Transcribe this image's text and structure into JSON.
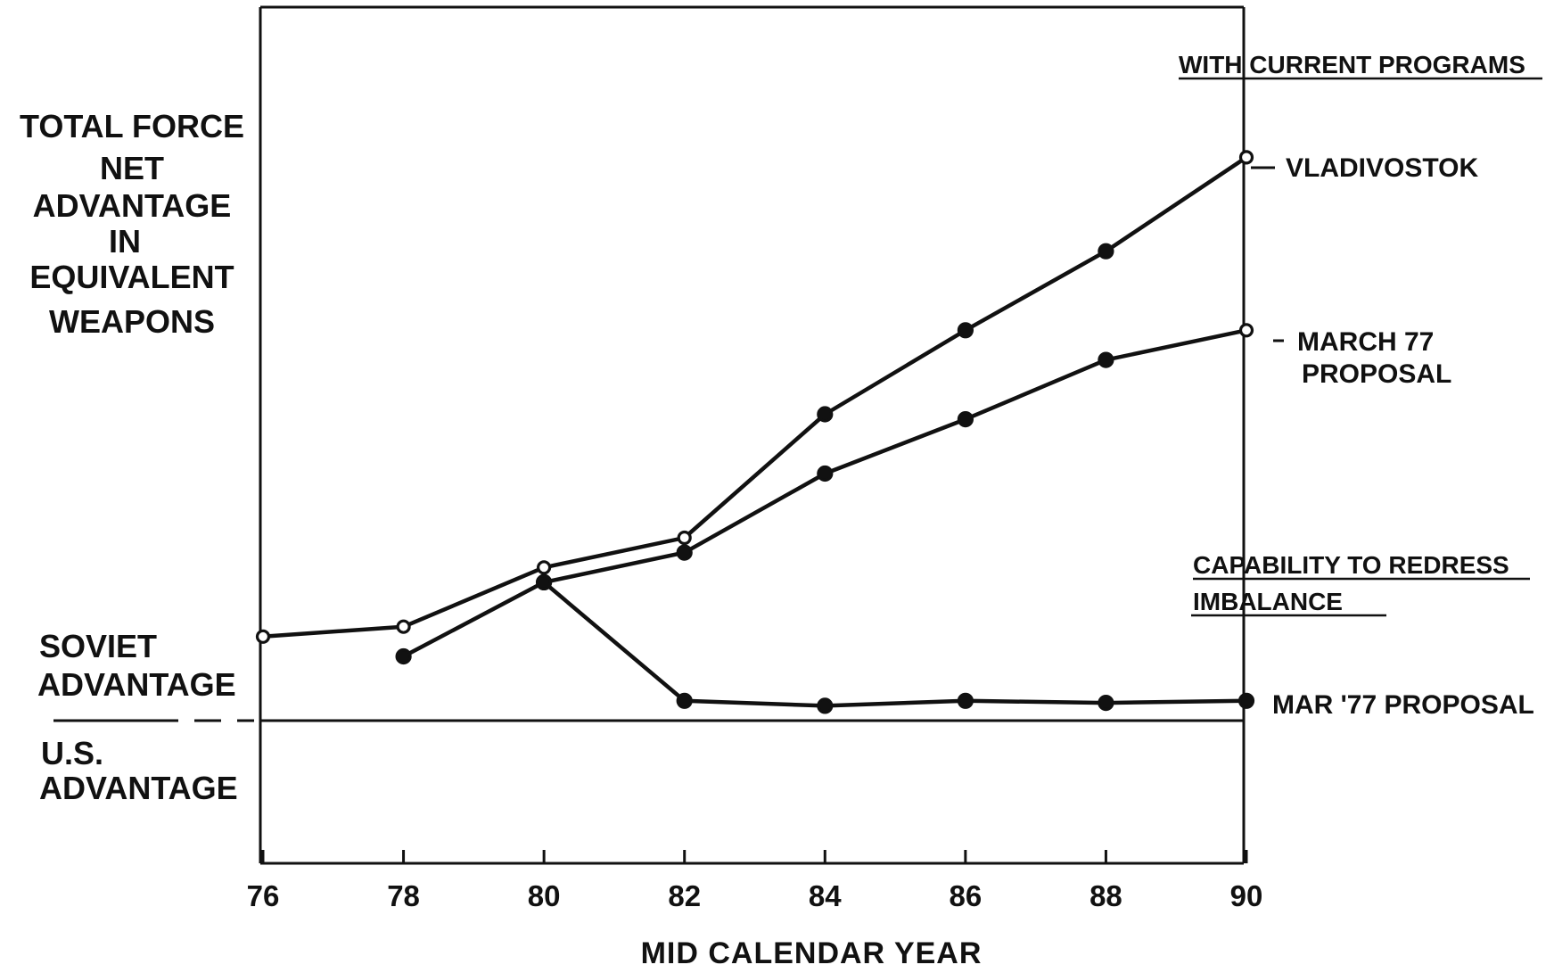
{
  "chart_data": {
    "type": "line",
    "title": "",
    "xlabel": "MID CALENDAR YEAR",
    "ylabel_lines": [
      "TOTAL FORCE",
      "NET",
      "ADVANTAGE",
      "IN",
      "EQUIVALENT",
      "WEAPONS"
    ],
    "ylabel": "TOTAL FORCE NET ADVANTAGE IN EQUIVALENT WEAPONS",
    "x_ticks": [
      "76",
      "78",
      "80",
      "82",
      "84",
      "86",
      "88",
      "90"
    ],
    "xlim": [
      76,
      90
    ],
    "ylim": [
      -50,
      150
    ],
    "zero_line_labels": {
      "above": [
        "SOVIET",
        "ADVANTAGE"
      ],
      "below": [
        "U.S.",
        "ADVANTAGE"
      ]
    },
    "group_headers": {
      "current_programs": "WITH CURRENT PROGRAMS",
      "redress": [
        "CAPABILITY TO REDRESS",
        "IMBALANCE"
      ]
    },
    "series": [
      {
        "name": "VLADIVOSTOK",
        "label_lines": [
          "VLADIVOSTOK"
        ],
        "group": "WITH CURRENT PROGRAMS",
        "x": [
          76,
          78,
          80,
          82,
          84,
          86,
          88,
          90
        ],
        "y": [
          8.5,
          9.5,
          15.5,
          18.5,
          31,
          39.5,
          47.5,
          57
        ],
        "markers": [
          "open",
          "open",
          "open",
          "open",
          "filled",
          "filled",
          "filled",
          "open"
        ]
      },
      {
        "name": "MARCH 77 PROPOSAL",
        "label_lines": [
          "MARCH  77",
          "PROPOSAL"
        ],
        "group": "WITH CURRENT PROGRAMS",
        "x": [
          78,
          80,
          82,
          84,
          86,
          88,
          90
        ],
        "y": [
          6.5,
          14,
          17,
          25,
          30.5,
          36.5,
          39.5
        ],
        "markers": [
          "filled",
          "filled",
          "filled",
          "filled",
          "filled",
          "filled",
          "open"
        ]
      },
      {
        "name": "MAR '77 PROPOSAL",
        "label_lines": [
          "MAR '77 PROPOSAL"
        ],
        "group": "CAPABILITY TO REDRESS IMBALANCE",
        "x": [
          80,
          82,
          84,
          86,
          88,
          90
        ],
        "y": [
          14,
          2,
          1.5,
          2,
          1.8,
          2
        ],
        "markers": [
          "filled",
          "filled",
          "filled",
          "filled",
          "filled",
          "filled"
        ]
      }
    ],
    "grid": false,
    "legend": "right"
  }
}
